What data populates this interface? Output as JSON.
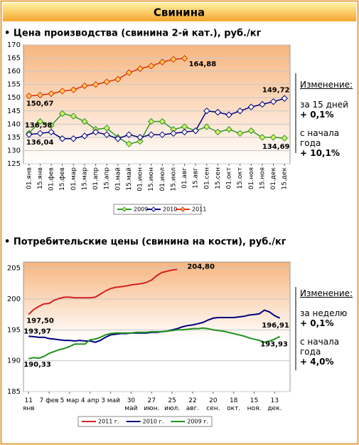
{
  "header": "Свинина",
  "chart_data": [
    {
      "type": "line",
      "title": "• Цена производства (свинина 2-й кат.), руб./кг",
      "categories": [
        "01.янв",
        "15.янв",
        "01.фев",
        "15.фев",
        "01.мар",
        "15.мар",
        "01.апр",
        "15.апр",
        "01.май",
        "15.май",
        "01.июн",
        "15.июн",
        "01.июл",
        "15.июл",
        "01.авг",
        "15.авг",
        "01.сен",
        "15.сен",
        "01.окт",
        "15.окт",
        "01.ноя",
        "15.ноя",
        "01.дек",
        "15.дек"
      ],
      "ylim": [
        125,
        170
      ],
      "yticks": [
        125,
        130,
        135,
        140,
        145,
        150,
        155,
        160,
        165,
        170
      ],
      "grid": true,
      "markers": true,
      "series": [
        {
          "name": "2009",
          "color": "#2e9a2e",
          "marker_color": "#d8f060",
          "values": [
            136.58,
            141,
            139.5,
            144,
            143,
            141,
            138,
            138.5,
            135,
            132.5,
            133.5,
            141,
            141,
            138,
            139,
            137.5,
            139,
            137,
            138,
            136.5,
            137.5,
            135,
            135,
            134.69
          ],
          "value_labels": {
            "0": "136,58",
            "23": "134,69"
          }
        },
        {
          "name": "2010",
          "color": "#000080",
          "marker_color": "#ffffff",
          "values": [
            136.04,
            136.5,
            137,
            134.5,
            134.5,
            135.5,
            137,
            136,
            134.5,
            136,
            135,
            136,
            136,
            136.5,
            137,
            137.5,
            145,
            144.5,
            143.5,
            145,
            146.5,
            147.5,
            148.5,
            149.72
          ],
          "value_labels": {
            "0": "136,04",
            "23": "149,72"
          }
        },
        {
          "name": "2011",
          "color": "#e03010",
          "marker_color": "#ffd050",
          "values": [
            150.67,
            151,
            151.5,
            152.5,
            153,
            154.5,
            155,
            156,
            157,
            159.5,
            161,
            162,
            163.5,
            164.5,
            164.88,
            null,
            null,
            null,
            null,
            null,
            null,
            null,
            null,
            null
          ],
          "value_labels": {
            "0": "150,67",
            "14": "164,88"
          }
        }
      ],
      "side_panel": {
        "heading": "Изменение:",
        "items": [
          {
            "period": "за 15 дней",
            "change": "+ 0,1%"
          },
          {
            "period": "с начала года",
            "change": "+ 10,1%"
          }
        ]
      }
    },
    {
      "type": "line",
      "title": "• Потребительские цены (свинина на кости), руб./кг",
      "x": [
        0,
        1,
        2,
        3,
        4,
        5,
        6,
        7,
        8,
        9,
        10,
        11,
        12,
        13,
        14,
        15,
        16,
        17,
        18,
        19,
        20,
        21,
        22,
        23,
        24,
        25,
        26,
        27,
        28,
        29,
        30,
        31,
        32,
        33,
        34,
        35,
        36,
        37,
        38,
        39,
        40,
        41,
        42,
        43,
        44,
        45,
        46,
        47,
        48,
        49
      ],
      "xlim": [
        -1,
        51
      ],
      "xticks": [
        {
          "value": 0,
          "label": [
            "11",
            "янв"
          ]
        },
        {
          "value": 4,
          "label": [
            "7 фев"
          ]
        },
        {
          "value": 8,
          "label": [
            "5 мар"
          ]
        },
        {
          "value": 12,
          "label": [
            "4 апр"
          ]
        },
        {
          "value": 16,
          "label": [
            "3 май"
          ]
        },
        {
          "value": 20,
          "label": [
            "30",
            "май"
          ]
        },
        {
          "value": 24,
          "label": [
            "27",
            "июн."
          ]
        },
        {
          "value": 28,
          "label": [
            "25",
            "июл."
          ]
        },
        {
          "value": 32,
          "label": [
            "22",
            "авг."
          ]
        },
        {
          "value": 36,
          "label": [
            "20",
            "сен."
          ]
        },
        {
          "value": 40,
          "label": [
            "18",
            "окт."
          ]
        },
        {
          "value": 44,
          "label": [
            "15",
            "ноя."
          ]
        },
        {
          "value": 48,
          "label": [
            "13",
            "дек."
          ]
        }
      ],
      "ylim": [
        185,
        206
      ],
      "yticks": [
        185,
        190,
        195,
        200,
        205
      ],
      "grid": true,
      "markers": false,
      "series": [
        {
          "name": "2011 г.",
          "color": "#d42020",
          "values": [
            197.5,
            198.3,
            198.8,
            199.2,
            199.3,
            199.8,
            200.1,
            200.3,
            200.3,
            200.2,
            200.2,
            200.2,
            200.2,
            200.3,
            200.8,
            201.3,
            201.7,
            201.9,
            202.0,
            202.1,
            202.3,
            202.4,
            202.5,
            202.7,
            203.1,
            203.8,
            204.3,
            204.5,
            204.7,
            204.8,
            null,
            null,
            null,
            null,
            null,
            null,
            null,
            null,
            null,
            null,
            null,
            null,
            null,
            null,
            null,
            null,
            null,
            null,
            null,
            null
          ],
          "value_labels": {
            "0": "197,50",
            "29": "204,80"
          }
        },
        {
          "name": "2010 г.",
          "color": "#000080",
          "values": [
            193.97,
            193.9,
            193.8,
            193.8,
            193.6,
            193.5,
            193.4,
            193.3,
            193.3,
            193.2,
            193.3,
            193.2,
            193.2,
            193.0,
            193.3,
            193.8,
            194.2,
            194.3,
            194.4,
            194.4,
            194.5,
            194.5,
            194.5,
            194.5,
            194.6,
            194.6,
            194.7,
            194.8,
            195.0,
            195.2,
            195.5,
            195.7,
            195.8,
            196.0,
            196.2,
            196.6,
            196.9,
            197.0,
            197.0,
            197.0,
            197.0,
            197.1,
            197.2,
            197.4,
            197.5,
            197.6,
            198.2,
            197.9,
            197.3,
            196.91
          ],
          "value_labels": {
            "0": "193,97",
            "49": "196,91"
          }
        },
        {
          "name": "2009 г.",
          "color": "#209020",
          "values": [
            190.33,
            190.5,
            190.4,
            190.7,
            191.2,
            191.5,
            191.8,
            192.0,
            192.3,
            192.7,
            192.7,
            192.7,
            193.4,
            193.5,
            193.8,
            194.2,
            194.4,
            194.5,
            194.5,
            194.5,
            194.5,
            194.6,
            194.6,
            194.6,
            194.7,
            194.7,
            194.7,
            194.8,
            194.9,
            195.0,
            195.0,
            195.1,
            195.2,
            195.2,
            195.3,
            195.2,
            195.0,
            194.9,
            194.8,
            194.6,
            194.4,
            194.2,
            194.0,
            193.7,
            193.5,
            193.3,
            193.0,
            193.2,
            193.5,
            193.93
          ],
          "value_labels": {
            "0": "190,33",
            "49": "193,93"
          }
        }
      ],
      "side_panel": {
        "heading": "Изменение:",
        "items": [
          {
            "period": "за неделю",
            "change": "+ 0,1%"
          },
          {
            "period": "с начала года",
            "change": "+ 4,0%"
          }
        ]
      }
    }
  ]
}
